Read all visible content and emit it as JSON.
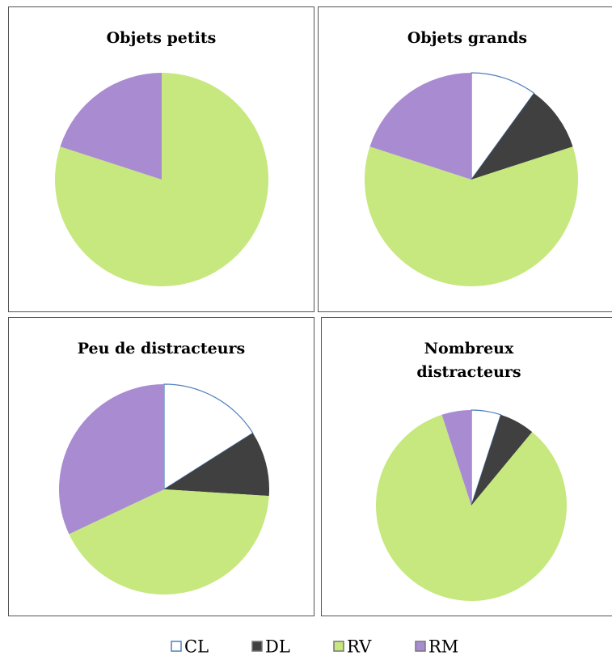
{
  "categories": [
    "CL",
    "DL",
    "RV",
    "RM"
  ],
  "colors": [
    "#ffffff",
    "#404040",
    "#c6e87e",
    "#a98bd1"
  ],
  "chart_data": [
    {
      "type": "pie",
      "title": "Objets petits",
      "values": [
        0,
        0,
        80,
        20
      ]
    },
    {
      "type": "pie",
      "title": "Objets grands",
      "values": [
        10,
        10,
        60,
        20
      ]
    },
    {
      "type": "pie",
      "title": "Peu de distracteurs",
      "values": [
        16,
        10,
        42,
        32
      ]
    },
    {
      "type": "pie",
      "title": "Nombreux distracteurs",
      "values": [
        5,
        6,
        84,
        5
      ]
    }
  ]
}
